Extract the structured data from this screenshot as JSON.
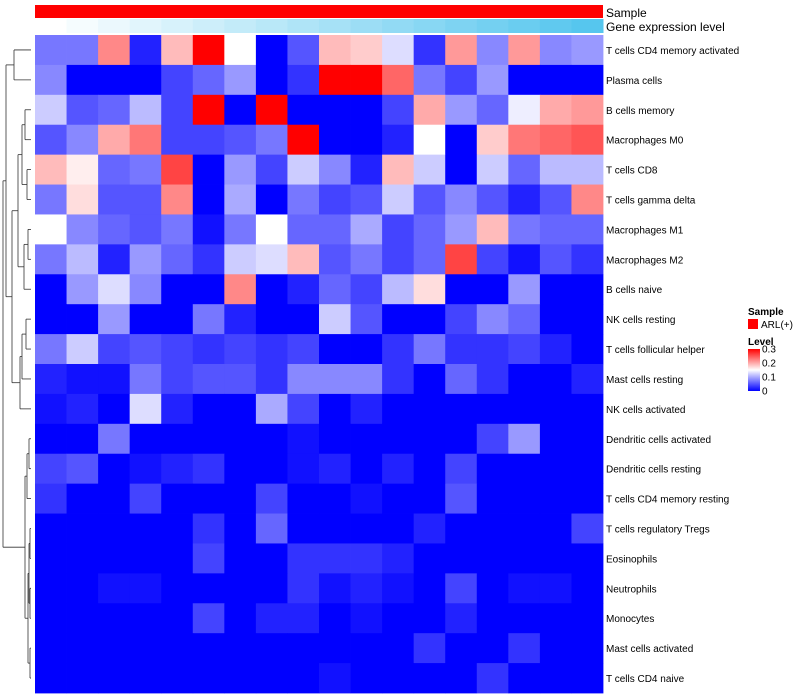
{
  "chart_data": {
    "type": "heatmap",
    "annotation_tracks": [
      {
        "name": "Sample",
        "color": "#ff0000"
      },
      {
        "name": "Gene expression level",
        "colormap": [
          "#ffffff",
          "#56c6ee"
        ]
      }
    ],
    "rows": [
      "T cells CD4 memory activated",
      "Plasma cells",
      "B cells memory",
      "Macrophages M0",
      "T cells CD8",
      "T cells gamma delta",
      "Macrophages M1",
      "Macrophages M2",
      "B cells naive",
      "NK cells resting",
      "T cells follicular helper",
      "Mast cells resting",
      "NK cells activated",
      "Dendritic cells activated",
      "Dendritic cells resting",
      "T cells CD4 memory resting",
      "T cells regulatory  Tregs",
      "Eosinophils",
      "Neutrophils",
      "Monocytes",
      "Mast cells activated",
      "T cells CD4 naive"
    ],
    "n_columns": 18,
    "values": [
      [
        0.07,
        0.07,
        0.22,
        0.02,
        0.19,
        0.3,
        0.15,
        0.0,
        0.05,
        0.19,
        0.18,
        0.13,
        0.03,
        0.21,
        0.08,
        0.21,
        0.08,
        0.09
      ],
      [
        0.08,
        0.0,
        0.0,
        0.0,
        0.04,
        0.06,
        0.09,
        0.0,
        0.03,
        0.3,
        0.3,
        0.24,
        0.07,
        0.04,
        0.09,
        0.0,
        0.0,
        0.0
      ],
      [
        0.12,
        0.05,
        0.06,
        0.11,
        0.04,
        0.3,
        0.0,
        0.3,
        0.0,
        0.0,
        0.0,
        0.04,
        0.2,
        0.09,
        0.06,
        0.14,
        0.2,
        0.21
      ],
      [
        0.05,
        0.08,
        0.2,
        0.23,
        0.04,
        0.04,
        0.05,
        0.07,
        0.3,
        0.0,
        0.0,
        0.02,
        0.15,
        0.0,
        0.18,
        0.23,
        0.24,
        0.25
      ],
      [
        0.19,
        0.16,
        0.06,
        0.07,
        0.26,
        0.0,
        0.09,
        0.04,
        0.12,
        0.08,
        0.02,
        0.19,
        0.12,
        0.0,
        0.12,
        0.06,
        0.11,
        0.11
      ],
      [
        0.07,
        0.17,
        0.05,
        0.05,
        0.22,
        0.0,
        0.1,
        0.0,
        0.07,
        0.04,
        0.05,
        0.12,
        0.05,
        0.08,
        0.05,
        0.02,
        0.05,
        0.22
      ],
      [
        0.15,
        0.08,
        0.06,
        0.05,
        0.07,
        0.01,
        0.07,
        0.15,
        0.06,
        0.06,
        0.1,
        0.04,
        0.06,
        0.09,
        0.19,
        0.07,
        0.06,
        0.06
      ],
      [
        0.07,
        0.11,
        0.02,
        0.09,
        0.06,
        0.03,
        0.12,
        0.13,
        0.19,
        0.05,
        0.07,
        0.04,
        0.06,
        0.26,
        0.04,
        0.01,
        0.05,
        0.03
      ],
      [
        0.0,
        0.09,
        0.13,
        0.08,
        0.0,
        0.0,
        0.22,
        0.0,
        0.02,
        0.06,
        0.04,
        0.11,
        0.17,
        0.0,
        0.0,
        0.09,
        0.0,
        0.0
      ],
      [
        0.0,
        0.0,
        0.09,
        0.0,
        0.0,
        0.07,
        0.02,
        0.0,
        0.0,
        0.12,
        0.05,
        0.0,
        0.0,
        0.04,
        0.08,
        0.06,
        0.0,
        0.0
      ],
      [
        0.07,
        0.12,
        0.04,
        0.05,
        0.04,
        0.03,
        0.04,
        0.03,
        0.04,
        0.0,
        0.0,
        0.03,
        0.07,
        0.03,
        0.03,
        0.04,
        0.02,
        0.0
      ],
      [
        0.02,
        0.01,
        0.01,
        0.07,
        0.04,
        0.05,
        0.05,
        0.03,
        0.08,
        0.08,
        0.08,
        0.03,
        0.0,
        0.06,
        0.03,
        0.0,
        0.0,
        0.02
      ],
      [
        0.01,
        0.02,
        0.0,
        0.13,
        0.02,
        0.0,
        0.0,
        0.1,
        0.04,
        0.0,
        0.02,
        0.0,
        0.0,
        0.0,
        0.0,
        0.0,
        0.0,
        0.0
      ],
      [
        0.0,
        0.0,
        0.07,
        0.0,
        0.0,
        0.0,
        0.0,
        0.0,
        0.01,
        0.0,
        0.0,
        0.0,
        0.0,
        0.0,
        0.04,
        0.09,
        0.0,
        0.0
      ],
      [
        0.04,
        0.05,
        0.0,
        0.01,
        0.02,
        0.03,
        0.0,
        0.0,
        0.01,
        0.02,
        0.0,
        0.02,
        0.0,
        0.04,
        0.0,
        0.0,
        0.0,
        0.0
      ],
      [
        0.03,
        0.0,
        0.0,
        0.04,
        0.0,
        0.0,
        0.0,
        0.04,
        0.0,
        0.0,
        0.01,
        0.0,
        0.0,
        0.05,
        0.0,
        0.0,
        0.0,
        0.0
      ],
      [
        0.0,
        0.0,
        0.0,
        0.0,
        0.0,
        0.03,
        0.0,
        0.06,
        0.0,
        0.0,
        0.0,
        0.0,
        0.02,
        0.0,
        0.0,
        0.0,
        0.0,
        0.04
      ],
      [
        0.0,
        0.0,
        0.0,
        0.0,
        0.0,
        0.04,
        0.0,
        0.0,
        0.03,
        0.03,
        0.03,
        0.02,
        0.0,
        0.0,
        0.0,
        0.0,
        0.0,
        0.0
      ],
      [
        0.0,
        0.0,
        0.01,
        0.01,
        0.0,
        0.0,
        0.0,
        0.0,
        0.03,
        0.01,
        0.02,
        0.01,
        0.0,
        0.04,
        0.0,
        0.01,
        0.01,
        0.0
      ],
      [
        0.0,
        0.0,
        0.0,
        0.0,
        0.0,
        0.04,
        0.0,
        0.02,
        0.02,
        0.0,
        0.01,
        0.0,
        0.0,
        0.02,
        0.0,
        0.0,
        0.0,
        0.0
      ],
      [
        0.0,
        0.0,
        0.0,
        0.0,
        0.0,
        0.0,
        0.0,
        0.0,
        0.0,
        0.0,
        0.0,
        0.0,
        0.03,
        0.0,
        0.0,
        0.03,
        0.0,
        0.0
      ],
      [
        0.0,
        0.0,
        0.0,
        0.0,
        0.0,
        0.0,
        0.0,
        0.0,
        0.0,
        0.01,
        0.0,
        0.0,
        0.0,
        0.0,
        0.03,
        0.0,
        0.0,
        0.0
      ]
    ],
    "colorscale": {
      "min": 0,
      "mid": 0.15,
      "max": 0.3,
      "low": "#0000ff",
      "midcolor": "#ffffff",
      "high": "#ff0000"
    },
    "legend": {
      "sample_title": "Sample",
      "sample_entry": "ARL(+)",
      "level_title": "Level",
      "level_ticks": [
        "0.3",
        "0.2",
        "0.1",
        "0"
      ],
      "level_tick_values": [
        0.3,
        0.2,
        0.1,
        0
      ]
    }
  }
}
